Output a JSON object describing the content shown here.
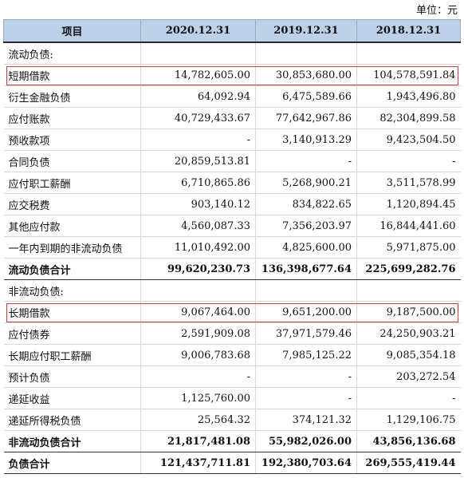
{
  "unit_label": "单位：元",
  "headers": [
    "项目",
    "2020.12.31",
    "2019.12.31",
    "2018.12.31"
  ],
  "rows": [
    {
      "label": "流动负债:",
      "values": [
        "",
        "",
        ""
      ],
      "type": "section"
    },
    {
      "label": "短期借款",
      "values": [
        "14,782,605.00",
        "30,853,680.00",
        "104,578,591.84"
      ],
      "type": "highlight"
    },
    {
      "label": "衍生金融负债",
      "values": [
        "64,092.94",
        "6,475,589.66",
        "1,943,496.80"
      ],
      "type": "normal"
    },
    {
      "label": "应付账款",
      "values": [
        "40,729,433.67",
        "77,642,967.86",
        "82,304,899.58"
      ],
      "type": "normal"
    },
    {
      "label": "预收款项",
      "values": [
        "-",
        "3,140,913.29",
        "9,423,504.50"
      ],
      "type": "normal"
    },
    {
      "label": "合同负债",
      "values": [
        "20,859,513.81",
        "-",
        "-"
      ],
      "type": "normal"
    },
    {
      "label": "应付职工薪酬",
      "values": [
        "6,710,865.86",
        "5,268,900.21",
        "3,511,578.99"
      ],
      "type": "normal"
    },
    {
      "label": "应交税费",
      "values": [
        "903,140.12",
        "834,822.65",
        "1,120,894.45"
      ],
      "type": "normal"
    },
    {
      "label": "其他应付款",
      "values": [
        "4,560,087.33",
        "7,356,203.97",
        "16,844,441.60"
      ],
      "type": "normal"
    },
    {
      "label": "一年内到期的非流动负债",
      "values": [
        "11,010,492.00",
        "4,825,600.00",
        "5,971,875.00"
      ],
      "type": "normal"
    },
    {
      "label": "流动负债合计",
      "values": [
        "99,620,230.73",
        "136,398,677.64",
        "225,699,282.76"
      ],
      "type": "bold"
    },
    {
      "label": "非流动负债:",
      "values": [
        "",
        "",
        ""
      ],
      "type": "section"
    },
    {
      "label": "长期借款",
      "values": [
        "9,067,464.00",
        "9,651,200.00",
        "9,187,500.00"
      ],
      "type": "highlight"
    },
    {
      "label": "应付债券",
      "values": [
        "2,591,909.08",
        "37,971,579.46",
        "24,250,903.21"
      ],
      "type": "normal"
    },
    {
      "label": "长期应付职工薪酬",
      "values": [
        "9,006,783.68",
        "7,985,125.22",
        "9,085,354.18"
      ],
      "type": "normal"
    },
    {
      "label": "预计负债",
      "values": [
        "-",
        "-",
        "203,272.54"
      ],
      "type": "normal"
    },
    {
      "label": "递延收益",
      "values": [
        "1,125,760.00",
        "-",
        "-"
      ],
      "type": "normal"
    },
    {
      "label": "递延所得税负债",
      "values": [
        "25,564.32",
        "374,121.32",
        "1,129,106.75"
      ],
      "type": "normal"
    },
    {
      "label": "非流动负债合计",
      "values": [
        "21,817,481.08",
        "55,982,026.00",
        "43,856,136.68"
      ],
      "type": "bold"
    },
    {
      "label": "负债合计",
      "values": [
        "121,437,711.81",
        "192,380,703.64",
        "269,555,419.44"
      ],
      "type": "bold"
    }
  ]
}
